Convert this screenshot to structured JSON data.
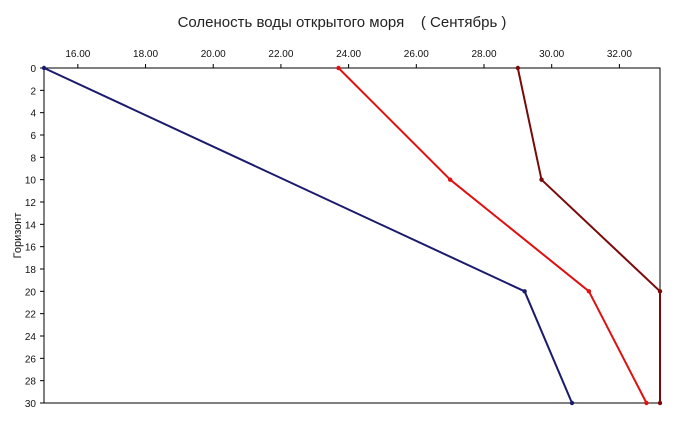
{
  "chart_data": {
    "type": "line",
    "title": "Соленость воды открытого моря    ( Сентябрь )",
    "xlabel": "",
    "ylabel": "Горизонт",
    "x_axis_position": "top",
    "y_axis_inverted": true,
    "xlim": [
      15.0,
      33.2
    ],
    "ylim": [
      0,
      30
    ],
    "x_ticks": [
      "16.00",
      "18.00",
      "20.00",
      "22.00",
      "24.00",
      "26.00",
      "28.00",
      "30.00",
      "32.00"
    ],
    "x_tick_values": [
      16,
      18,
      20,
      22,
      24,
      26,
      28,
      30,
      32
    ],
    "y_ticks": [
      "0",
      "2",
      "4",
      "6",
      "8",
      "10",
      "12",
      "14",
      "16",
      "18",
      "20",
      "22",
      "24",
      "26",
      "28",
      "30"
    ],
    "y_tick_values": [
      0,
      2,
      4,
      6,
      8,
      10,
      12,
      14,
      16,
      18,
      20,
      22,
      24,
      26,
      28,
      30
    ],
    "grid": true,
    "series": [
      {
        "color": "#1a1a6e",
        "points": [
          [
            15.0,
            0
          ],
          [
            29.2,
            20
          ],
          [
            30.6,
            30
          ]
        ]
      },
      {
        "color": "#e01010",
        "points": [
          [
            23.7,
            0
          ],
          [
            27.0,
            10
          ],
          [
            31.1,
            20
          ],
          [
            32.8,
            30
          ]
        ]
      },
      {
        "color": "#7a0a0a",
        "points": [
          [
            29.0,
            0
          ],
          [
            29.7,
            10
          ],
          [
            33.2,
            20
          ],
          [
            33.2,
            30
          ]
        ]
      }
    ]
  }
}
